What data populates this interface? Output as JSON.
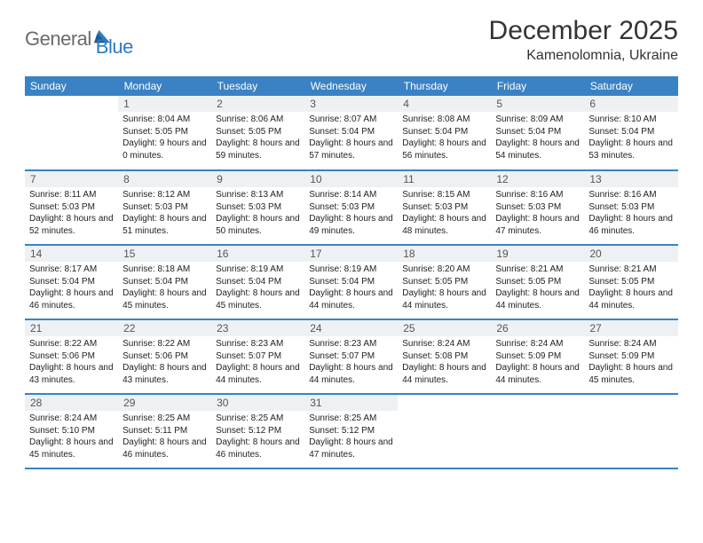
{
  "logo": {
    "text1": "General",
    "text2": "Blue"
  },
  "title": "December 2025",
  "location": "Kamenolomnia, Ukraine",
  "colors": {
    "header_bg": "#3a82c4",
    "header_text": "#ffffff",
    "daynum_bg": "#eef1f3",
    "border": "#3a82c4",
    "logo_gray": "#6b6b6b",
    "logo_blue": "#2d7bc0"
  },
  "day_headers": [
    "Sunday",
    "Monday",
    "Tuesday",
    "Wednesday",
    "Thursday",
    "Friday",
    "Saturday"
  ],
  "weeks": [
    [
      {
        "blank": true
      },
      {
        "num": "1",
        "sunrise": "8:04 AM",
        "sunset": "5:05 PM",
        "daylight": "9 hours and 0 minutes."
      },
      {
        "num": "2",
        "sunrise": "8:06 AM",
        "sunset": "5:05 PM",
        "daylight": "8 hours and 59 minutes."
      },
      {
        "num": "3",
        "sunrise": "8:07 AM",
        "sunset": "5:04 PM",
        "daylight": "8 hours and 57 minutes."
      },
      {
        "num": "4",
        "sunrise": "8:08 AM",
        "sunset": "5:04 PM",
        "daylight": "8 hours and 56 minutes."
      },
      {
        "num": "5",
        "sunrise": "8:09 AM",
        "sunset": "5:04 PM",
        "daylight": "8 hours and 54 minutes."
      },
      {
        "num": "6",
        "sunrise": "8:10 AM",
        "sunset": "5:04 PM",
        "daylight": "8 hours and 53 minutes."
      }
    ],
    [
      {
        "num": "7",
        "sunrise": "8:11 AM",
        "sunset": "5:03 PM",
        "daylight": "8 hours and 52 minutes."
      },
      {
        "num": "8",
        "sunrise": "8:12 AM",
        "sunset": "5:03 PM",
        "daylight": "8 hours and 51 minutes."
      },
      {
        "num": "9",
        "sunrise": "8:13 AM",
        "sunset": "5:03 PM",
        "daylight": "8 hours and 50 minutes."
      },
      {
        "num": "10",
        "sunrise": "8:14 AM",
        "sunset": "5:03 PM",
        "daylight": "8 hours and 49 minutes."
      },
      {
        "num": "11",
        "sunrise": "8:15 AM",
        "sunset": "5:03 PM",
        "daylight": "8 hours and 48 minutes."
      },
      {
        "num": "12",
        "sunrise": "8:16 AM",
        "sunset": "5:03 PM",
        "daylight": "8 hours and 47 minutes."
      },
      {
        "num": "13",
        "sunrise": "8:16 AM",
        "sunset": "5:03 PM",
        "daylight": "8 hours and 46 minutes."
      }
    ],
    [
      {
        "num": "14",
        "sunrise": "8:17 AM",
        "sunset": "5:04 PM",
        "daylight": "8 hours and 46 minutes."
      },
      {
        "num": "15",
        "sunrise": "8:18 AM",
        "sunset": "5:04 PM",
        "daylight": "8 hours and 45 minutes."
      },
      {
        "num": "16",
        "sunrise": "8:19 AM",
        "sunset": "5:04 PM",
        "daylight": "8 hours and 45 minutes."
      },
      {
        "num": "17",
        "sunrise": "8:19 AM",
        "sunset": "5:04 PM",
        "daylight": "8 hours and 44 minutes."
      },
      {
        "num": "18",
        "sunrise": "8:20 AM",
        "sunset": "5:05 PM",
        "daylight": "8 hours and 44 minutes."
      },
      {
        "num": "19",
        "sunrise": "8:21 AM",
        "sunset": "5:05 PM",
        "daylight": "8 hours and 44 minutes."
      },
      {
        "num": "20",
        "sunrise": "8:21 AM",
        "sunset": "5:05 PM",
        "daylight": "8 hours and 44 minutes."
      }
    ],
    [
      {
        "num": "21",
        "sunrise": "8:22 AM",
        "sunset": "5:06 PM",
        "daylight": "8 hours and 43 minutes."
      },
      {
        "num": "22",
        "sunrise": "8:22 AM",
        "sunset": "5:06 PM",
        "daylight": "8 hours and 43 minutes."
      },
      {
        "num": "23",
        "sunrise": "8:23 AM",
        "sunset": "5:07 PM",
        "daylight": "8 hours and 44 minutes."
      },
      {
        "num": "24",
        "sunrise": "8:23 AM",
        "sunset": "5:07 PM",
        "daylight": "8 hours and 44 minutes."
      },
      {
        "num": "25",
        "sunrise": "8:24 AM",
        "sunset": "5:08 PM",
        "daylight": "8 hours and 44 minutes."
      },
      {
        "num": "26",
        "sunrise": "8:24 AM",
        "sunset": "5:09 PM",
        "daylight": "8 hours and 44 minutes."
      },
      {
        "num": "27",
        "sunrise": "8:24 AM",
        "sunset": "5:09 PM",
        "daylight": "8 hours and 45 minutes."
      }
    ],
    [
      {
        "num": "28",
        "sunrise": "8:24 AM",
        "sunset": "5:10 PM",
        "daylight": "8 hours and 45 minutes."
      },
      {
        "num": "29",
        "sunrise": "8:25 AM",
        "sunset": "5:11 PM",
        "daylight": "8 hours and 46 minutes."
      },
      {
        "num": "30",
        "sunrise": "8:25 AM",
        "sunset": "5:12 PM",
        "daylight": "8 hours and 46 minutes."
      },
      {
        "num": "31",
        "sunrise": "8:25 AM",
        "sunset": "5:12 PM",
        "daylight": "8 hours and 47 minutes."
      },
      {
        "blank": true
      },
      {
        "blank": true
      },
      {
        "blank": true
      }
    ]
  ],
  "labels": {
    "sunrise": "Sunrise: ",
    "sunset": "Sunset: ",
    "daylight": "Daylight: "
  }
}
